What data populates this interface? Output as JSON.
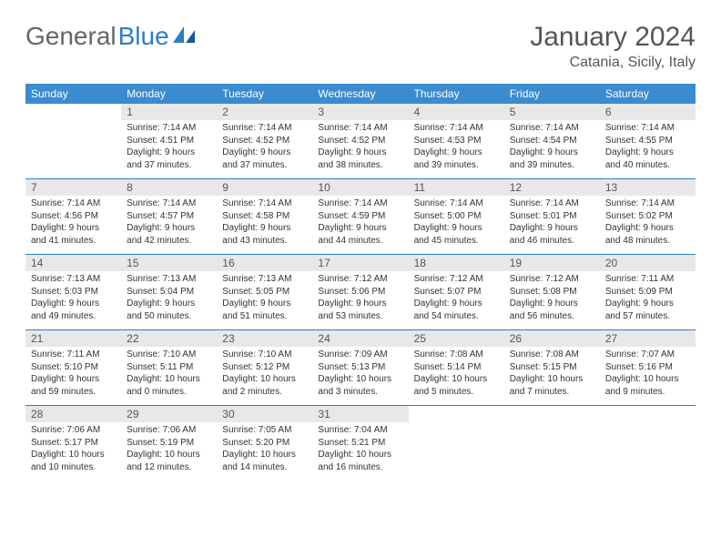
{
  "logo": {
    "text1": "General",
    "text2": "Blue"
  },
  "title": "January 2024",
  "location": "Catania, Sicily, Italy",
  "colors": {
    "header_bg": "#3a8bcf",
    "header_text": "#ffffff",
    "daynum_bg": "#e8e8e8",
    "border": "#2d7dc4",
    "title_color": "#555555",
    "body_text": "#333333",
    "background": "#ffffff"
  },
  "typography": {
    "title_fontsize": 30,
    "location_fontsize": 16,
    "weekday_fontsize": 12,
    "daynum_fontsize": 12,
    "body_fontsize": 10
  },
  "weekdays": [
    "Sunday",
    "Monday",
    "Tuesday",
    "Wednesday",
    "Thursday",
    "Friday",
    "Saturday"
  ],
  "weeks": [
    [
      {
        "n": "",
        "s": "",
        "u": "",
        "d": "",
        "empty": true
      },
      {
        "n": "1",
        "s": "Sunrise: 7:14 AM",
        "u": "Sunset: 4:51 PM",
        "d": "Daylight: 9 hours and 37 minutes."
      },
      {
        "n": "2",
        "s": "Sunrise: 7:14 AM",
        "u": "Sunset: 4:52 PM",
        "d": "Daylight: 9 hours and 37 minutes."
      },
      {
        "n": "3",
        "s": "Sunrise: 7:14 AM",
        "u": "Sunset: 4:52 PM",
        "d": "Daylight: 9 hours and 38 minutes."
      },
      {
        "n": "4",
        "s": "Sunrise: 7:14 AM",
        "u": "Sunset: 4:53 PM",
        "d": "Daylight: 9 hours and 39 minutes."
      },
      {
        "n": "5",
        "s": "Sunrise: 7:14 AM",
        "u": "Sunset: 4:54 PM",
        "d": "Daylight: 9 hours and 39 minutes."
      },
      {
        "n": "6",
        "s": "Sunrise: 7:14 AM",
        "u": "Sunset: 4:55 PM",
        "d": "Daylight: 9 hours and 40 minutes."
      }
    ],
    [
      {
        "n": "7",
        "s": "Sunrise: 7:14 AM",
        "u": "Sunset: 4:56 PM",
        "d": "Daylight: 9 hours and 41 minutes."
      },
      {
        "n": "8",
        "s": "Sunrise: 7:14 AM",
        "u": "Sunset: 4:57 PM",
        "d": "Daylight: 9 hours and 42 minutes."
      },
      {
        "n": "9",
        "s": "Sunrise: 7:14 AM",
        "u": "Sunset: 4:58 PM",
        "d": "Daylight: 9 hours and 43 minutes."
      },
      {
        "n": "10",
        "s": "Sunrise: 7:14 AM",
        "u": "Sunset: 4:59 PM",
        "d": "Daylight: 9 hours and 44 minutes."
      },
      {
        "n": "11",
        "s": "Sunrise: 7:14 AM",
        "u": "Sunset: 5:00 PM",
        "d": "Daylight: 9 hours and 45 minutes."
      },
      {
        "n": "12",
        "s": "Sunrise: 7:14 AM",
        "u": "Sunset: 5:01 PM",
        "d": "Daylight: 9 hours and 46 minutes."
      },
      {
        "n": "13",
        "s": "Sunrise: 7:14 AM",
        "u": "Sunset: 5:02 PM",
        "d": "Daylight: 9 hours and 48 minutes."
      }
    ],
    [
      {
        "n": "14",
        "s": "Sunrise: 7:13 AM",
        "u": "Sunset: 5:03 PM",
        "d": "Daylight: 9 hours and 49 minutes."
      },
      {
        "n": "15",
        "s": "Sunrise: 7:13 AM",
        "u": "Sunset: 5:04 PM",
        "d": "Daylight: 9 hours and 50 minutes."
      },
      {
        "n": "16",
        "s": "Sunrise: 7:13 AM",
        "u": "Sunset: 5:05 PM",
        "d": "Daylight: 9 hours and 51 minutes."
      },
      {
        "n": "17",
        "s": "Sunrise: 7:12 AM",
        "u": "Sunset: 5:06 PM",
        "d": "Daylight: 9 hours and 53 minutes."
      },
      {
        "n": "18",
        "s": "Sunrise: 7:12 AM",
        "u": "Sunset: 5:07 PM",
        "d": "Daylight: 9 hours and 54 minutes."
      },
      {
        "n": "19",
        "s": "Sunrise: 7:12 AM",
        "u": "Sunset: 5:08 PM",
        "d": "Daylight: 9 hours and 56 minutes."
      },
      {
        "n": "20",
        "s": "Sunrise: 7:11 AM",
        "u": "Sunset: 5:09 PM",
        "d": "Daylight: 9 hours and 57 minutes."
      }
    ],
    [
      {
        "n": "21",
        "s": "Sunrise: 7:11 AM",
        "u": "Sunset: 5:10 PM",
        "d": "Daylight: 9 hours and 59 minutes."
      },
      {
        "n": "22",
        "s": "Sunrise: 7:10 AM",
        "u": "Sunset: 5:11 PM",
        "d": "Daylight: 10 hours and 0 minutes."
      },
      {
        "n": "23",
        "s": "Sunrise: 7:10 AM",
        "u": "Sunset: 5:12 PM",
        "d": "Daylight: 10 hours and 2 minutes."
      },
      {
        "n": "24",
        "s": "Sunrise: 7:09 AM",
        "u": "Sunset: 5:13 PM",
        "d": "Daylight: 10 hours and 3 minutes."
      },
      {
        "n": "25",
        "s": "Sunrise: 7:08 AM",
        "u": "Sunset: 5:14 PM",
        "d": "Daylight: 10 hours and 5 minutes."
      },
      {
        "n": "26",
        "s": "Sunrise: 7:08 AM",
        "u": "Sunset: 5:15 PM",
        "d": "Daylight: 10 hours and 7 minutes."
      },
      {
        "n": "27",
        "s": "Sunrise: 7:07 AM",
        "u": "Sunset: 5:16 PM",
        "d": "Daylight: 10 hours and 9 minutes."
      }
    ],
    [
      {
        "n": "28",
        "s": "Sunrise: 7:06 AM",
        "u": "Sunset: 5:17 PM",
        "d": "Daylight: 10 hours and 10 minutes."
      },
      {
        "n": "29",
        "s": "Sunrise: 7:06 AM",
        "u": "Sunset: 5:19 PM",
        "d": "Daylight: 10 hours and 12 minutes."
      },
      {
        "n": "30",
        "s": "Sunrise: 7:05 AM",
        "u": "Sunset: 5:20 PM",
        "d": "Daylight: 10 hours and 14 minutes."
      },
      {
        "n": "31",
        "s": "Sunrise: 7:04 AM",
        "u": "Sunset: 5:21 PM",
        "d": "Daylight: 10 hours and 16 minutes."
      },
      {
        "n": "",
        "s": "",
        "u": "",
        "d": "",
        "empty": true
      },
      {
        "n": "",
        "s": "",
        "u": "",
        "d": "",
        "empty": true
      },
      {
        "n": "",
        "s": "",
        "u": "",
        "d": "",
        "empty": true
      }
    ]
  ]
}
